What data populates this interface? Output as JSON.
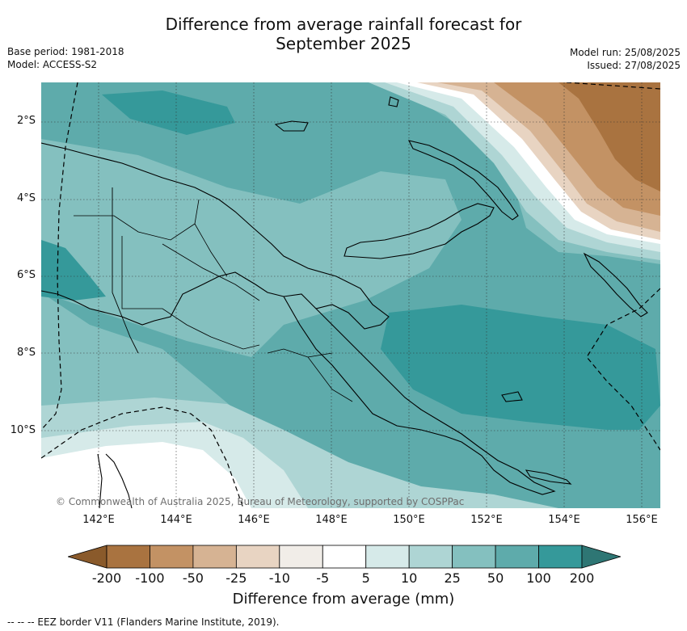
{
  "header": {
    "title_line1": "Difference from average rainfall forecast for",
    "title_line2": "September 2025",
    "base_period": "Base period: 1981-2018",
    "model": "Model: ACCESS-S2",
    "model_run": "Model run: 25/08/2025",
    "issued": "Issued: 27/08/2025"
  },
  "map": {
    "region": "Papua New Guinea",
    "lat_labels": [
      "2°S",
      "4°S",
      "6°S",
      "8°S",
      "10°S"
    ],
    "lon_labels": [
      "142°E",
      "144°E",
      "146°E",
      "148°E",
      "150°E",
      "152°E",
      "154°E",
      "156°E"
    ],
    "credit": "© Commonwealth of Australia 2025, Bureau of Meteorology, supported by COSPPac"
  },
  "legend": {
    "tick_labels": [
      "-200",
      "-100",
      "-50",
      "-25",
      "-10",
      "-5",
      "5",
      "10",
      "25",
      "50",
      "100",
      "200"
    ],
    "colors": [
      "#8a5a2b",
      "#a97340",
      "#c39264",
      "#d6b393",
      "#e8d4c2",
      "#f1ede8",
      "#ffffff",
      "#d6eae9",
      "#aed5d4",
      "#84c0bf",
      "#5eabab",
      "#35999a",
      "#2e7674"
    ],
    "title": "Difference from average (mm)"
  },
  "footnote": "--  --  -- EEZ border V11 (Flanders Marine Institute, 2019)."
}
